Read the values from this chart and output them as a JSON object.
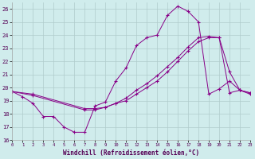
{
  "bg_color": "#d0ecec",
  "grid_color": "#b0cccc",
  "line_color": "#880088",
  "xlabel": "Windchill (Refroidissement éolien,°C)",
  "xlim": [
    0,
    23
  ],
  "ylim": [
    16,
    26.5
  ],
  "xticks": [
    0,
    1,
    2,
    3,
    4,
    5,
    6,
    7,
    8,
    9,
    10,
    11,
    12,
    13,
    14,
    15,
    16,
    17,
    18,
    19,
    20,
    21,
    22,
    23
  ],
  "yticks": [
    16,
    17,
    18,
    19,
    20,
    21,
    22,
    23,
    24,
    25,
    26
  ],
  "line1_x": [
    0,
    1,
    2,
    3,
    4,
    5,
    6,
    7,
    8,
    9,
    10,
    11,
    12,
    13,
    14,
    15,
    16,
    17,
    18,
    19,
    20,
    21,
    22,
    23
  ],
  "line1_y": [
    19.7,
    19.3,
    18.8,
    17.8,
    17.8,
    17.0,
    16.6,
    16.6,
    18.6,
    18.9,
    20.5,
    21.5,
    23.2,
    23.8,
    24.0,
    25.5,
    26.2,
    25.8,
    25.0,
    19.5,
    19.9,
    20.5,
    19.8,
    19.6
  ],
  "line2_x": [
    0,
    2,
    7,
    8,
    9,
    10,
    11,
    12,
    13,
    14,
    15,
    16,
    17,
    18,
    19,
    20,
    21,
    22,
    23
  ],
  "line2_y": [
    19.7,
    19.5,
    18.4,
    18.4,
    18.5,
    18.8,
    19.0,
    19.5,
    20.0,
    20.5,
    21.2,
    22.0,
    22.8,
    23.5,
    23.8,
    23.8,
    21.2,
    19.8,
    19.6
  ],
  "line3_x": [
    0,
    2,
    7,
    8,
    9,
    10,
    11,
    12,
    13,
    14,
    15,
    16,
    17,
    18,
    19,
    20,
    21,
    22,
    23
  ],
  "line3_y": [
    19.7,
    19.4,
    18.3,
    18.3,
    18.5,
    18.8,
    19.2,
    19.8,
    20.3,
    20.9,
    21.6,
    22.3,
    23.1,
    23.8,
    23.9,
    23.8,
    19.6,
    19.8,
    19.5
  ]
}
